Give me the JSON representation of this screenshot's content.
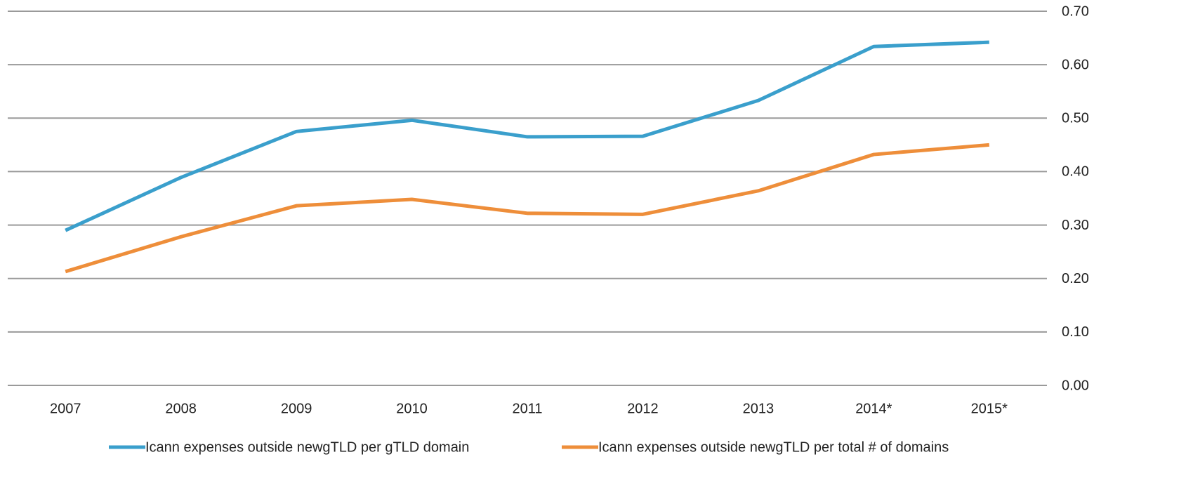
{
  "chart_data": {
    "type": "line",
    "categories": [
      "2007",
      "2008",
      "2009",
      "2010",
      "2011",
      "2012",
      "2013",
      "2014*",
      "2015*"
    ],
    "series": [
      {
        "name": "Icann expenses outside newgTLD per gTLD domain",
        "color": "#3a9fcc",
        "values": [
          0.29,
          0.389,
          0.475,
          0.496,
          0.465,
          0.466,
          0.533,
          0.634,
          0.642
        ]
      },
      {
        "name": "Icann expenses outside newgTLD per total # of domains",
        "color": "#ee8e3a",
        "values": [
          0.213,
          0.278,
          0.336,
          0.348,
          0.322,
          0.32,
          0.364,
          0.432,
          0.45
        ]
      }
    ],
    "ylim": [
      0,
      0.7
    ],
    "yticks": [
      {
        "value": 0,
        "label": "0.00"
      },
      {
        "value": 0.1,
        "label": "0.10"
      },
      {
        "value": 0.2,
        "label": "0.20"
      },
      {
        "value": 0.3,
        "label": "0.30"
      },
      {
        "value": 0.4,
        "label": "0.40"
      },
      {
        "value": 0.5,
        "label": "0.50"
      },
      {
        "value": 0.6,
        "label": "0.60"
      },
      {
        "value": 0.7,
        "label": "0.70"
      }
    ],
    "grid": true,
    "legend": "bottom"
  }
}
